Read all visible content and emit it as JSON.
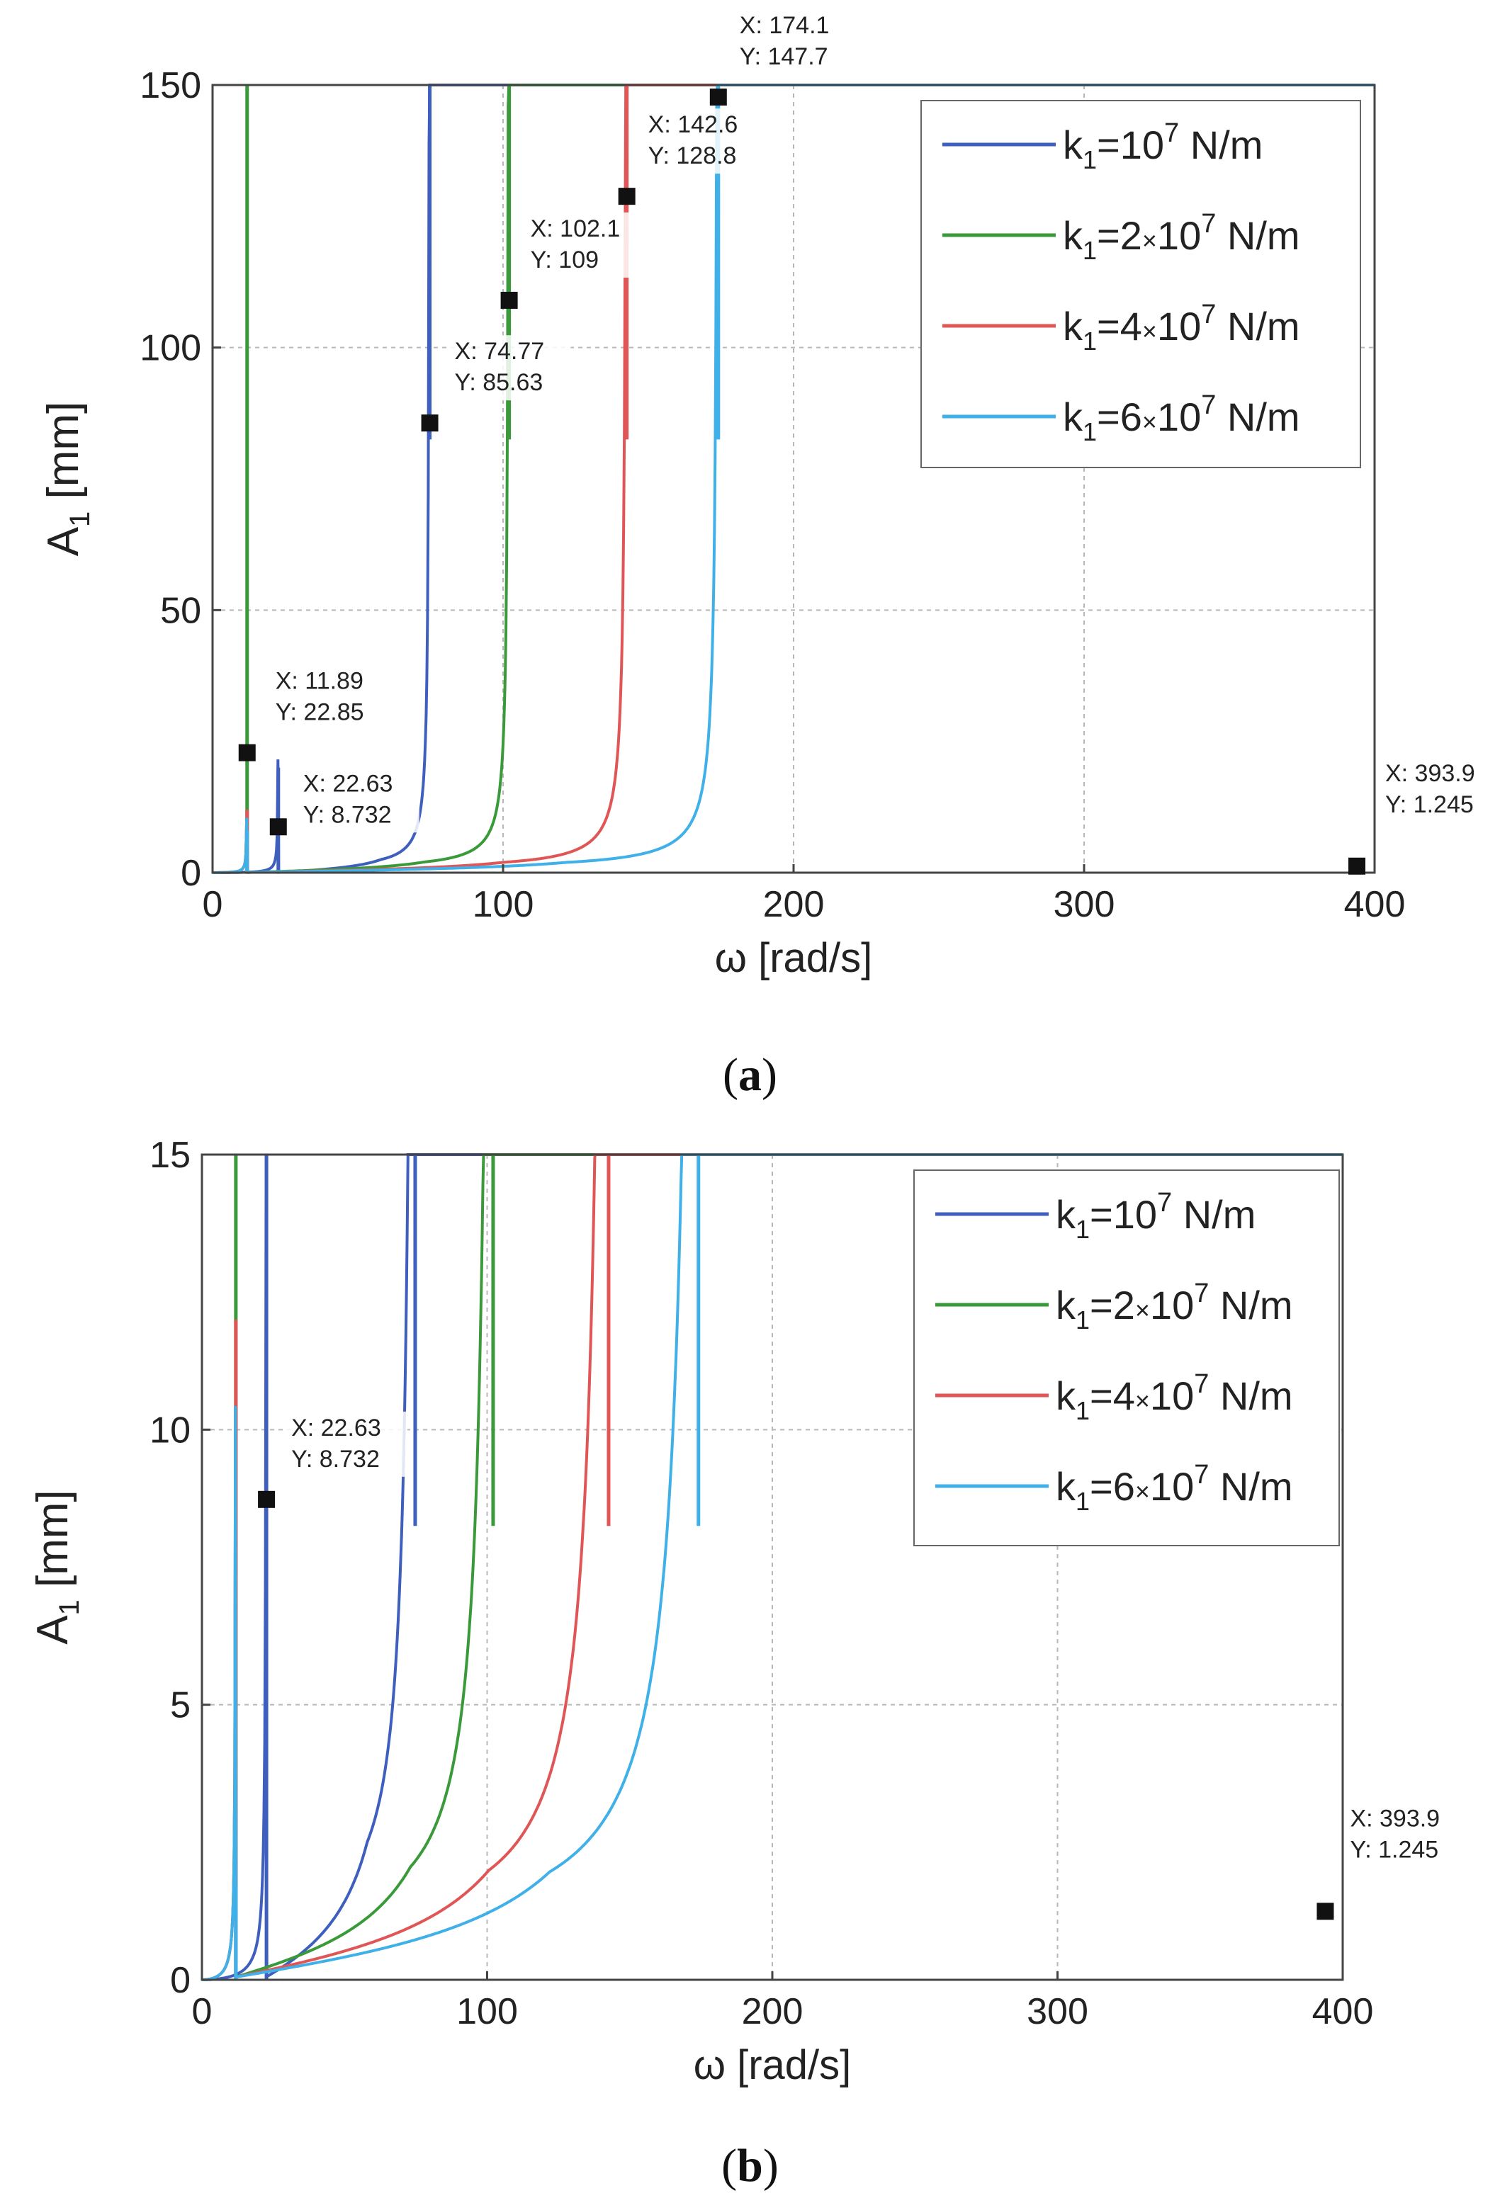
{
  "chart_data": [
    {
      "type": "line",
      "panel": "a",
      "caption": "a",
      "xlabel": "ω [rad/s]",
      "ylabel_main": "A",
      "ylabel_sub": "1",
      "ylabel_unit": "[mm]",
      "xlim": [
        0,
        400
      ],
      "ylim": [
        0,
        150
      ],
      "xticks": [
        "0",
        "100",
        "200",
        "300",
        "400"
      ],
      "xtick_values": [
        0,
        100,
        200,
        300,
        400
      ],
      "yticks": [
        "0",
        "50",
        "100",
        "150"
      ],
      "ytick_values": [
        0,
        50,
        100,
        150
      ],
      "grid": true,
      "legend_position": "top-right",
      "series": [
        {
          "name": "k1=10^7 N/m",
          "label_parts": [
            "k",
            "1",
            "=10",
            "7",
            " N/m"
          ],
          "color": "#3f5fbf",
          "low_peak": 22.63,
          "main_peak": 74.77
        },
        {
          "name": "k1=2×10^7 N/m",
          "label_parts": [
            "k",
            "1",
            "=2",
            "×",
            "10",
            "7",
            " N/m"
          ],
          "color": "#3a9a3a",
          "low_peak": 11.89,
          "main_peak": 102.1
        },
        {
          "name": "k1=4×10^7 N/m",
          "label_parts": [
            "k",
            "1",
            "=4",
            "×",
            "10",
            "7",
            " N/m"
          ],
          "color": "#e05555",
          "low_peak": 11.89,
          "main_peak": 142.6
        },
        {
          "name": "k1=6×10^7 N/m",
          "label_parts": [
            "k",
            "1",
            "=6",
            "×",
            "10",
            "7",
            " N/m"
          ],
          "color": "#3fb0e8",
          "low_peak": 11.89,
          "main_peak": 174.1
        }
      ],
      "annotations": [
        {
          "x": 11.89,
          "y": 22.85,
          "label_x": "X: 11.89",
          "label_y": "Y: 22.85"
        },
        {
          "x": 22.63,
          "y": 8.732,
          "label_x": "X: 22.63",
          "label_y": "Y: 8.732"
        },
        {
          "x": 74.77,
          "y": 85.63,
          "label_x": "X: 74.77",
          "label_y": "Y: 85.63"
        },
        {
          "x": 102.1,
          "y": 109,
          "label_x": "X: 102.1",
          "label_y": "Y: 109"
        },
        {
          "x": 142.6,
          "y": 128.8,
          "label_x": "X: 142.6",
          "label_y": "Y: 128.8"
        },
        {
          "x": 174.1,
          "y": 147.7,
          "label_x": "X: 174.1",
          "label_y": "Y: 147.7"
        },
        {
          "x": 393.9,
          "y": 1.245,
          "label_x": "X: 393.9",
          "label_y": "Y: 1.245"
        }
      ]
    },
    {
      "type": "line",
      "panel": "b",
      "caption": "b",
      "xlabel": "ω [rad/s]",
      "ylabel_main": "A",
      "ylabel_sub": "1",
      "ylabel_unit": "[mm]",
      "xlim": [
        0,
        400
      ],
      "ylim": [
        0,
        15
      ],
      "xticks": [
        "0",
        "100",
        "200",
        "300",
        "400"
      ],
      "xtick_values": [
        0,
        100,
        200,
        300,
        400
      ],
      "yticks": [
        "0",
        "5",
        "10",
        "15"
      ],
      "ytick_values": [
        0,
        5,
        10,
        15
      ],
      "grid": true,
      "legend_position": "top-right",
      "series": [
        {
          "name": "k1=10^7 N/m",
          "label_parts": [
            "k",
            "1",
            "=10",
            "7",
            " N/m"
          ],
          "color": "#3f5fbf",
          "low_peak": 22.63,
          "main_peak": 74.77
        },
        {
          "name": "k1=2×10^7 N/m",
          "label_parts": [
            "k",
            "1",
            "=2",
            "×",
            "10",
            "7",
            " N/m"
          ],
          "color": "#3a9a3a",
          "low_peak": 11.89,
          "main_peak": 102.1
        },
        {
          "name": "k1=4×10^7 N/m",
          "label_parts": [
            "k",
            "1",
            "=4",
            "×",
            "10",
            "7",
            " N/m"
          ],
          "color": "#e05555",
          "low_peak": 11.89,
          "main_peak": 142.6
        },
        {
          "name": "k1=6×10^7 N/m",
          "label_parts": [
            "k",
            "1",
            "=6",
            "×",
            "10",
            "7",
            " N/m"
          ],
          "color": "#3fb0e8",
          "low_peak": 11.89,
          "main_peak": 174.1
        }
      ],
      "annotations": [
        {
          "x": 22.63,
          "y": 8.732,
          "label_x": "X: 22.63",
          "label_y": "Y: 8.732"
        },
        {
          "x": 393.9,
          "y": 1.245,
          "label_x": "X: 393.9",
          "label_y": "Y: 1.245"
        }
      ]
    }
  ]
}
